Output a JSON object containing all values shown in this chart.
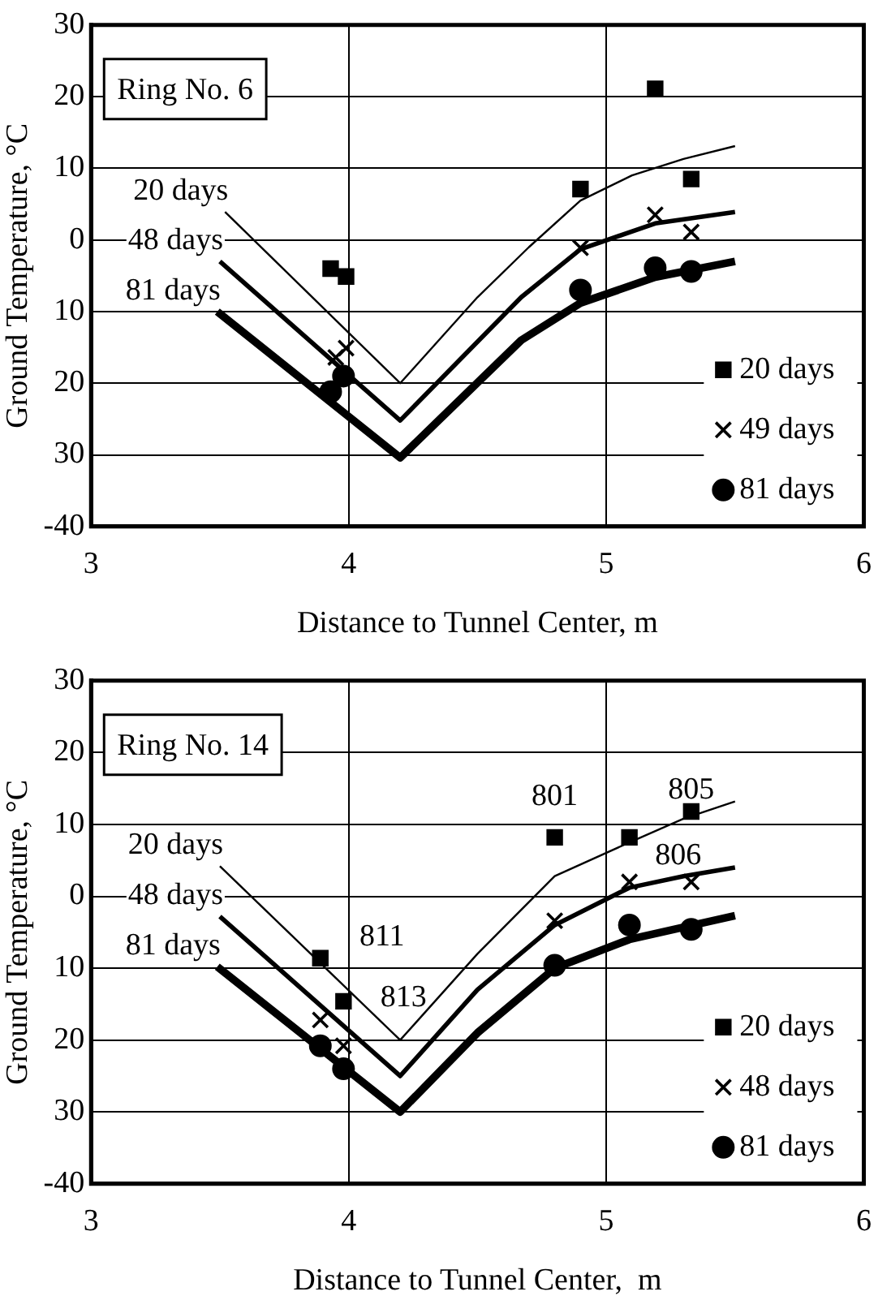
{
  "chart_data": [
    {
      "type": "scatter",
      "title": "Ring No. 6",
      "xlabel": "Distance to Tunnel Center, m",
      "ylabel": "Ground Temperature, °C",
      "xlim": [
        3,
        6
      ],
      "xticks": [
        3,
        4,
        5,
        6
      ],
      "ylim": [
        -40,
        30
      ],
      "yticks": [
        {
          "value": -40,
          "label": "-40"
        },
        {
          "value": -30,
          "label": "30"
        },
        {
          "value": -20,
          "label": "20"
        },
        {
          "value": -10,
          "label": "10"
        },
        0,
        10,
        20,
        30
      ],
      "grid": true,
      "legend": "bottom right",
      "line_style": "solid",
      "series": [
        {
          "name": "20 days",
          "type": "line",
          "marker": "none",
          "color": "#000000",
          "x": [
            3.52,
            4.2,
            4.5,
            4.7,
            4.9,
            5.1,
            5.3,
            5.5
          ],
          "values": [
            3.9,
            -20,
            -8,
            -1,
            5.5,
            9,
            11.3,
            13.1
          ]
        },
        {
          "name": "48 days",
          "type": "line",
          "marker": "none",
          "color": "#000000",
          "x": [
            3.5,
            4.2,
            4.67,
            4.9,
            5.19,
            5.5
          ],
          "values": [
            -3,
            -25.2,
            -8,
            -1.3,
            2.3,
            3.9
          ]
        },
        {
          "name": "81 days",
          "type": "line",
          "marker": "none",
          "color": "#000000",
          "x": [
            3.49,
            4.2,
            4.67,
            4.9,
            5.19,
            5.5
          ],
          "values": [
            -10,
            -30.4,
            -14,
            -8.8,
            -5.2,
            -3
          ]
        },
        {
          "name": "20 days",
          "type": "scatter",
          "marker": "square",
          "color": "#000000",
          "x": [
            3.93,
            3.99,
            4.9,
            5.19,
            5.33
          ],
          "values": [
            -4,
            -5.1,
            7.1,
            21.1,
            8.5
          ]
        },
        {
          "name": "49 days",
          "type": "scatter",
          "marker": "cross",
          "color": "#000000",
          "x": [
            3.95,
            3.99,
            4.9,
            5.19,
            5.33
          ],
          "values": [
            -16.4,
            -15.1,
            -1.1,
            3.5,
            1.1
          ]
        },
        {
          "name": "81 days",
          "type": "scatter",
          "marker": "circle",
          "color": "#000000",
          "x": [
            3.93,
            3.98,
            4.9,
            5.19,
            5.33
          ],
          "values": [
            -21.2,
            -19,
            -7,
            -3.9,
            -4.4
          ]
        }
      ]
    },
    {
      "type": "scatter",
      "title": "Ring No. 14",
      "xlabel": "Distance to Tunnel Center,  m",
      "ylabel": "Ground Temperature, °C",
      "xlim": [
        3,
        6
      ],
      "xticks": [
        3,
        4,
        5,
        6
      ],
      "ylim": [
        -40,
        30
      ],
      "yticks": [
        {
          "value": -40,
          "label": "-40"
        },
        {
          "value": -30,
          "label": "30"
        },
        {
          "value": -20,
          "label": "20"
        },
        {
          "value": -10,
          "label": "10"
        },
        0,
        10,
        20,
        30
      ],
      "grid": true,
      "legend": "bottom right",
      "line_style": "solid",
      "annotations": [
        {
          "text": "811",
          "x": 3.89,
          "y": -8.6
        },
        {
          "text": "813",
          "x": 3.98,
          "y": -14.6
        },
        {
          "text": "801",
          "x": 4.8,
          "y": 8.2
        },
        {
          "text": "805",
          "x": 5.33,
          "y": 11.8
        },
        {
          "text": "806",
          "x": 5.33,
          "y": 2
        }
      ],
      "series": [
        {
          "name": "20 days",
          "type": "line",
          "marker": "none",
          "color": "#000000",
          "x": [
            3.5,
            4.2,
            4.5,
            4.8,
            5.09,
            5.3,
            5.5
          ],
          "values": [
            4.2,
            -20,
            -8,
            2.8,
            7.5,
            10.8,
            13.2
          ]
        },
        {
          "name": "48 days",
          "type": "line",
          "marker": "none",
          "color": "#000000",
          "x": [
            3.5,
            4.2,
            4.5,
            4.8,
            5.09,
            5.3,
            5.5
          ],
          "values": [
            -2.8,
            -25,
            -13,
            -4,
            1.2,
            2.8,
            4
          ]
        },
        {
          "name": "81 days",
          "type": "line",
          "marker": "none",
          "color": "#000000",
          "x": [
            3.49,
            4.2,
            4.5,
            4.8,
            5.09,
            5.3,
            5.5
          ],
          "values": [
            -9.8,
            -30,
            -19,
            -10,
            -6,
            -4.3,
            -2.7
          ]
        },
        {
          "name": "20 days",
          "type": "scatter",
          "marker": "square",
          "color": "#000000",
          "x": [
            3.89,
            3.98,
            4.8,
            5.09,
            5.33
          ],
          "values": [
            -8.6,
            -14.6,
            8.2,
            8.2,
            11.8
          ]
        },
        {
          "name": "48 days",
          "type": "scatter",
          "marker": "cross",
          "color": "#000000",
          "x": [
            3.89,
            3.98,
            4.8,
            5.09,
            5.33
          ],
          "values": [
            -17.2,
            -20.8,
            -3.4,
            2,
            2
          ]
        },
        {
          "name": "81 days",
          "type": "scatter",
          "marker": "circle",
          "color": "#000000",
          "x": [
            3.89,
            3.98,
            4.8,
            5.09,
            5.33
          ],
          "values": [
            -20.8,
            -24,
            -9.6,
            -4,
            -4.6
          ]
        }
      ]
    }
  ]
}
